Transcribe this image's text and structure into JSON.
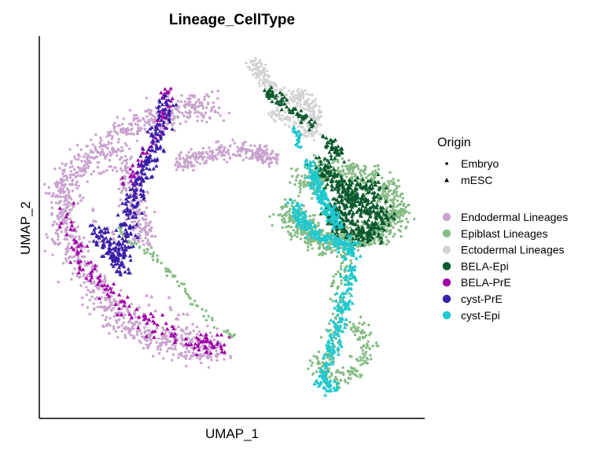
{
  "chart_data": {
    "type": "scatter",
    "title": "Lineage_CellType",
    "xlabel": "UMAP_1",
    "ylabel": "UMAP_2",
    "xlim": [
      0,
      100
    ],
    "ylim": [
      0,
      100
    ],
    "grid": false,
    "legend_placement": "right",
    "shape_legend": {
      "title": "Origin",
      "entries": [
        {
          "name": "Embryo",
          "shape": "dot"
        },
        {
          "name": "mESC",
          "shape": "triangle"
        }
      ]
    },
    "color_legend": {
      "entries": [
        {
          "name": "Endodermal Lineages",
          "color": "#c9a3cf"
        },
        {
          "name": "Epiblast Lineages",
          "color": "#86bc86"
        },
        {
          "name": "Ectodermal Lineages",
          "color": "#d3d3d3"
        },
        {
          "name": "BELA-Epi",
          "color": "#0b5a2e"
        },
        {
          "name": "BELA-PrE",
          "color": "#a000a8"
        },
        {
          "name": "cyst-PrE",
          "color": "#3a1fa8"
        },
        {
          "name": "cyst-Epi",
          "color": "#1fc8cf"
        }
      ]
    },
    "clusters": [
      {
        "series": "Endodermal Lineages",
        "shape": "dot",
        "count": 1100,
        "path": [
          [
            46,
            84
          ],
          [
            36,
            83
          ],
          [
            28,
            80
          ],
          [
            20,
            75
          ],
          [
            12,
            68
          ],
          [
            6,
            62
          ],
          [
            5,
            52
          ],
          [
            8,
            43
          ],
          [
            14,
            33
          ],
          [
            20,
            25
          ],
          [
            30,
            20
          ],
          [
            40,
            17
          ],
          [
            48,
            17
          ]
        ],
        "spread": 4.0
      },
      {
        "series": "Endodermal Lineages",
        "shape": "dot",
        "count": 260,
        "path": [
          [
            36,
            68
          ],
          [
            44,
            70
          ],
          [
            52,
            72
          ],
          [
            58,
            71
          ],
          [
            62,
            69
          ]
        ],
        "spread": 2.2
      },
      {
        "series": "Endodermal Lineages",
        "shape": "dot",
        "count": 200,
        "path": [
          [
            22,
            68
          ],
          [
            24,
            60
          ],
          [
            26,
            52
          ],
          [
            28,
            46
          ]
        ],
        "spread": 3.0
      },
      {
        "series": "Endodermal Lineages",
        "shape": "triangle",
        "count": 40,
        "path": [
          [
            10,
            60
          ],
          [
            18,
            46
          ],
          [
            30,
            30
          ],
          [
            44,
            20
          ]
        ],
        "spread": 3.0
      },
      {
        "series": "BELA-PrE",
        "shape": "triangle",
        "count": 60,
        "path": [
          [
            34,
            89
          ],
          [
            32,
            80
          ],
          [
            27,
            70
          ],
          [
            22,
            62
          ]
        ],
        "spread": 1.6
      },
      {
        "series": "BELA-PrE",
        "shape": "triangle",
        "count": 150,
        "path": [
          [
            6,
            56
          ],
          [
            8,
            46
          ],
          [
            14,
            36
          ],
          [
            22,
            28
          ],
          [
            32,
            22
          ],
          [
            42,
            18
          ],
          [
            48,
            18
          ]
        ],
        "spread": 2.4
      },
      {
        "series": "cyst-PrE",
        "shape": "triangle",
        "count": 260,
        "path": [
          [
            34,
            86
          ],
          [
            32,
            78
          ],
          [
            29,
            70
          ],
          [
            26,
            62
          ],
          [
            23,
            54
          ],
          [
            22,
            46
          ],
          [
            20,
            40
          ]
        ],
        "spread": 2.3
      },
      {
        "series": "cyst-PrE",
        "shape": "triangle",
        "count": 90,
        "path": [
          [
            14,
            50
          ],
          [
            18,
            44
          ],
          [
            22,
            38
          ]
        ],
        "spread": 2.5
      },
      {
        "series": "Epiblast Lineages",
        "shape": "dot",
        "count": 80,
        "path": [
          [
            20,
            50
          ],
          [
            24,
            46
          ],
          [
            28,
            44
          ],
          [
            32,
            40
          ],
          [
            37,
            35
          ],
          [
            40,
            30
          ],
          [
            44,
            26
          ],
          [
            48,
            22
          ],
          [
            52,
            20
          ]
        ],
        "spread": 0.8
      },
      {
        "series": "Epiblast Lineages",
        "shape": "dot",
        "count": 1000,
        "path": [
          [
            66,
            55
          ],
          [
            70,
            50
          ],
          [
            76,
            46
          ],
          [
            84,
            47
          ],
          [
            92,
            50
          ],
          [
            96,
            55
          ],
          [
            92,
            62
          ],
          [
            84,
            66
          ],
          [
            76,
            66
          ],
          [
            70,
            62
          ]
        ],
        "spread": 3.5
      },
      {
        "series": "Epiblast Lineages",
        "shape": "dot",
        "count": 280,
        "path": [
          [
            82,
            44
          ],
          [
            80,
            35
          ],
          [
            80,
            25
          ],
          [
            78,
            16
          ],
          [
            74,
            12
          ],
          [
            78,
            8
          ],
          [
            84,
            10
          ],
          [
            88,
            18
          ],
          [
            84,
            24
          ]
        ],
        "spread": 2.2
      },
      {
        "series": "BELA-Epi",
        "shape": "triangle",
        "count": 520,
        "path": [
          [
            74,
            68
          ],
          [
            80,
            62
          ],
          [
            86,
            56
          ],
          [
            92,
            54
          ],
          [
            88,
            48
          ],
          [
            82,
            50
          ],
          [
            78,
            54
          ],
          [
            84,
            60
          ],
          [
            90,
            62
          ]
        ],
        "spread": 3.0
      },
      {
        "series": "BELA-Epi",
        "shape": "triangle",
        "count": 40,
        "path": [
          [
            76,
            76
          ],
          [
            78,
            72
          ],
          [
            82,
            69
          ]
        ],
        "spread": 1.5
      },
      {
        "series": "cyst-Epi",
        "shape": "triangle",
        "count": 380,
        "path": [
          [
            68,
            57
          ],
          [
            70,
            52
          ],
          [
            74,
            48
          ],
          [
            80,
            46
          ],
          [
            84,
            44
          ],
          [
            83,
            36
          ],
          [
            81,
            28
          ],
          [
            79,
            20
          ],
          [
            77,
            12
          ],
          [
            75,
            7
          ],
          [
            79,
            6
          ]
        ],
        "spread": 1.8
      },
      {
        "series": "cyst-Epi",
        "shape": "triangle",
        "count": 180,
        "path": [
          [
            72,
            68
          ],
          [
            74,
            62
          ],
          [
            77,
            56
          ],
          [
            80,
            50
          ]
        ],
        "spread": 1.6
      },
      {
        "series": "Ectodermal Lineages",
        "shape": "dot",
        "count": 360,
        "path": [
          [
            57,
            96
          ],
          [
            59,
            92
          ],
          [
            62,
            88
          ],
          [
            66,
            85
          ],
          [
            70,
            87
          ],
          [
            72,
            84
          ],
          [
            74,
            80
          ],
          [
            72,
            76
          ],
          [
            66,
            80
          ],
          [
            62,
            82
          ]
        ],
        "spread": 1.8
      },
      {
        "series": "BELA-Epi",
        "shape": "triangle",
        "count": 70,
        "path": [
          [
            60,
            89
          ],
          [
            63,
            86
          ],
          [
            66,
            84
          ],
          [
            70,
            81
          ],
          [
            73,
            78
          ]
        ],
        "spread": 1.4
      },
      {
        "series": "cyst-Epi",
        "shape": "triangle",
        "count": 14,
        "path": [
          [
            67,
            78
          ],
          [
            69,
            76
          ],
          [
            70,
            74
          ]
        ],
        "spread": 0.8
      },
      {
        "series": "cyst-Epi",
        "shape": "dot",
        "count": 10,
        "path": [
          [
            69,
            75
          ],
          [
            69,
            72
          ]
        ],
        "spread": 0.5
      }
    ]
  }
}
